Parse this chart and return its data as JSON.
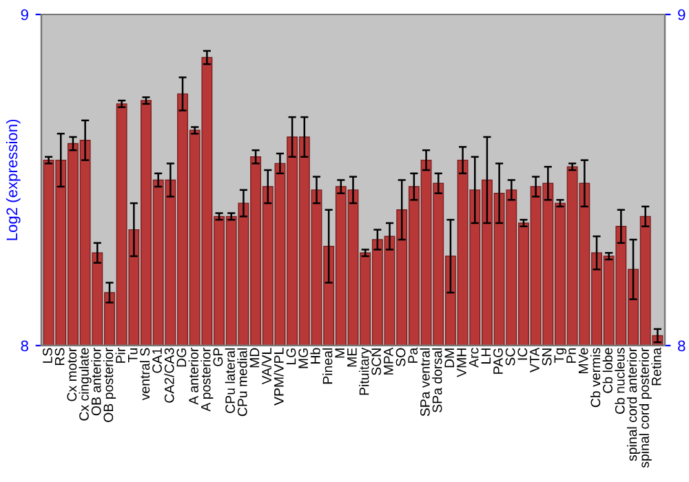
{
  "chart_data": {
    "type": "bar",
    "ylabel": "Log2 (expression)",
    "categories": [
      "LS",
      "RS",
      "Cx motor",
      "Cx cingulate",
      "OB anterior",
      "OB posterior",
      "Pir",
      "Tu",
      "ventral S",
      "CA1",
      "CA2/CA3",
      "DG",
      "A anterior",
      "A posterior",
      "GP",
      "CPu lateral",
      "CPu medial",
      "MD",
      "VA/VL",
      "VPM/VPL",
      "LG",
      "MG",
      "Hb",
      "Pineal",
      "M",
      "ME",
      "Pituitary",
      "SCN",
      "MPA",
      "SO",
      "Pa",
      "SPa ventral",
      "SPa dorsal",
      "DM",
      "VMH",
      "Arc",
      "LH",
      "PAG",
      "SC",
      "IC",
      "VTA",
      "SN",
      "Tg",
      "Pn",
      "MVe",
      "Cb vermis",
      "Cb lobe",
      "Cb nucleus",
      "spinal cord anterior",
      "spinal cord posterior",
      "Retina"
    ],
    "values": [
      8.56,
      8.56,
      8.61,
      8.62,
      8.28,
      8.16,
      8.73,
      8.35,
      8.74,
      8.5,
      8.5,
      8.76,
      8.65,
      8.87,
      8.39,
      8.39,
      8.43,
      8.57,
      8.48,
      8.55,
      8.63,
      8.63,
      8.47,
      8.3,
      8.48,
      8.47,
      8.28,
      8.32,
      8.33,
      8.41,
      8.48,
      8.56,
      8.49,
      8.27,
      8.56,
      8.47,
      8.5,
      8.46,
      8.47,
      8.37,
      8.48,
      8.49,
      8.43,
      8.54,
      8.49,
      8.28,
      8.27,
      8.36,
      8.23,
      8.39,
      8.03
    ],
    "errors": [
      0.01,
      0.08,
      0.02,
      0.06,
      0.03,
      0.03,
      0.01,
      0.08,
      0.01,
      0.02,
      0.05,
      0.05,
      0.01,
      0.02,
      0.01,
      0.01,
      0.04,
      0.02,
      0.05,
      0.03,
      0.06,
      0.06,
      0.04,
      0.11,
      0.02,
      0.04,
      0.01,
      0.03,
      0.04,
      0.09,
      0.04,
      0.03,
      0.03,
      0.11,
      0.04,
      0.1,
      0.13,
      0.09,
      0.03,
      0.01,
      0.03,
      0.05,
      0.01,
      0.01,
      0.07,
      0.05,
      0.01,
      0.05,
      0.09,
      0.03,
      0.02
    ],
    "color": "#b83838",
    "ylim": [
      8,
      9
    ],
    "yticks": [
      8,
      9
    ],
    "y2lim": [
      8,
      9
    ],
    "y2ticks": [
      8,
      9
    ],
    "grid": false,
    "legend": false
  }
}
